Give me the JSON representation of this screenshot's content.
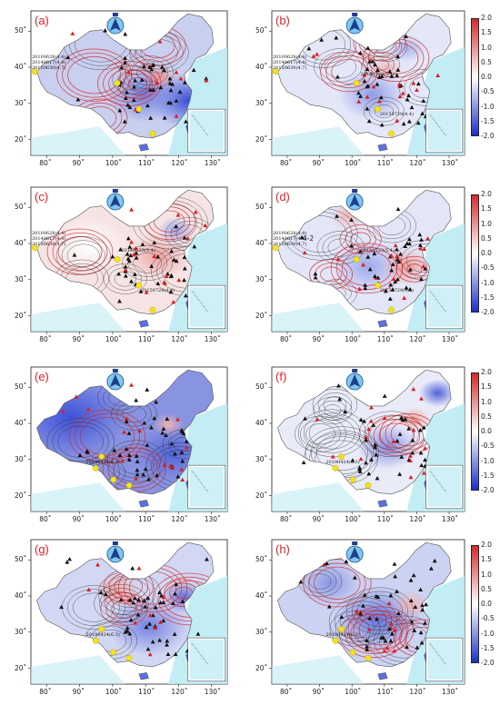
{
  "panels": [
    {
      "label": "(a)",
      "epicenter_labels": [
        "20100628(4.4)",
        "20140617(4.4)",
        "20150630(4.7)"
      ],
      "second_label": "",
      "second_label_text": ""
    },
    {
      "label": "(b)",
      "epicenter_labels": [
        "20100628(4.4)",
        "20140617(4.4)",
        "20150630(4.7)"
      ],
      "second_label": "20140523(5.4)",
      "second_label_text": "20150729(4.4)"
    },
    {
      "label": "(c)",
      "epicenter_labels": [
        "20100628(4.4)",
        "20140617(4.4)",
        "20150630(4.7)"
      ],
      "second_label": "20140523(5.4)",
      "second_label_text": "20150729(4.4)"
    },
    {
      "label": "(d)",
      "epicenter_labels": [
        "20100628(4.4)",
        "20140617(4.4)",
        "20150630(4.7)"
      ],
      "second_label": "20140523(5.4)",
      "second_label_text": "20150729(4.4)"
    },
    {
      "label": "(e)",
      "epicenter_labels": [
        "20190424(6.3)"
      ],
      "second_label": "",
      "second_label_text": ""
    },
    {
      "label": "(f)",
      "epicenter_labels": [
        "20190424(6.3)"
      ],
      "second_label": "",
      "second_label_text": ""
    },
    {
      "label": "(g)",
      "epicenter_labels": [
        "20190424(6.3)"
      ],
      "second_label": "",
      "second_label_text": ""
    },
    {
      "label": "(h)",
      "epicenter_labels": [
        "20190424(6.3)"
      ],
      "second_label": "",
      "second_label_text": ""
    }
  ],
  "map_axes": {
    "lon_ticks": [
      "80˚",
      "90˚",
      "100˚",
      "110˚",
      "120˚",
      "130˚"
    ],
    "lat_ticks": [
      "50˚",
      "40˚",
      "30˚",
      "20˚"
    ]
  },
  "colorbar": {
    "ticks": [
      "2.0",
      "1.5",
      "1.0",
      "0.5",
      "0.0",
      "-0.5",
      "-1.0",
      "-1.5",
      "-2.0"
    ],
    "range": [
      -2.0,
      2.0
    ],
    "colors": {
      "positive": "#d22a2a",
      "zero": "#ffffff",
      "negative": "#1b2fc6"
    }
  },
  "extra_text": {
    "panel_d_contour": "4-2"
  },
  "colors": {
    "label": "#e0202a",
    "land_water": "#b9eaf2",
    "station": "#111111",
    "red_station": "#d81e1e",
    "epicenter": "#f5e21c"
  }
}
